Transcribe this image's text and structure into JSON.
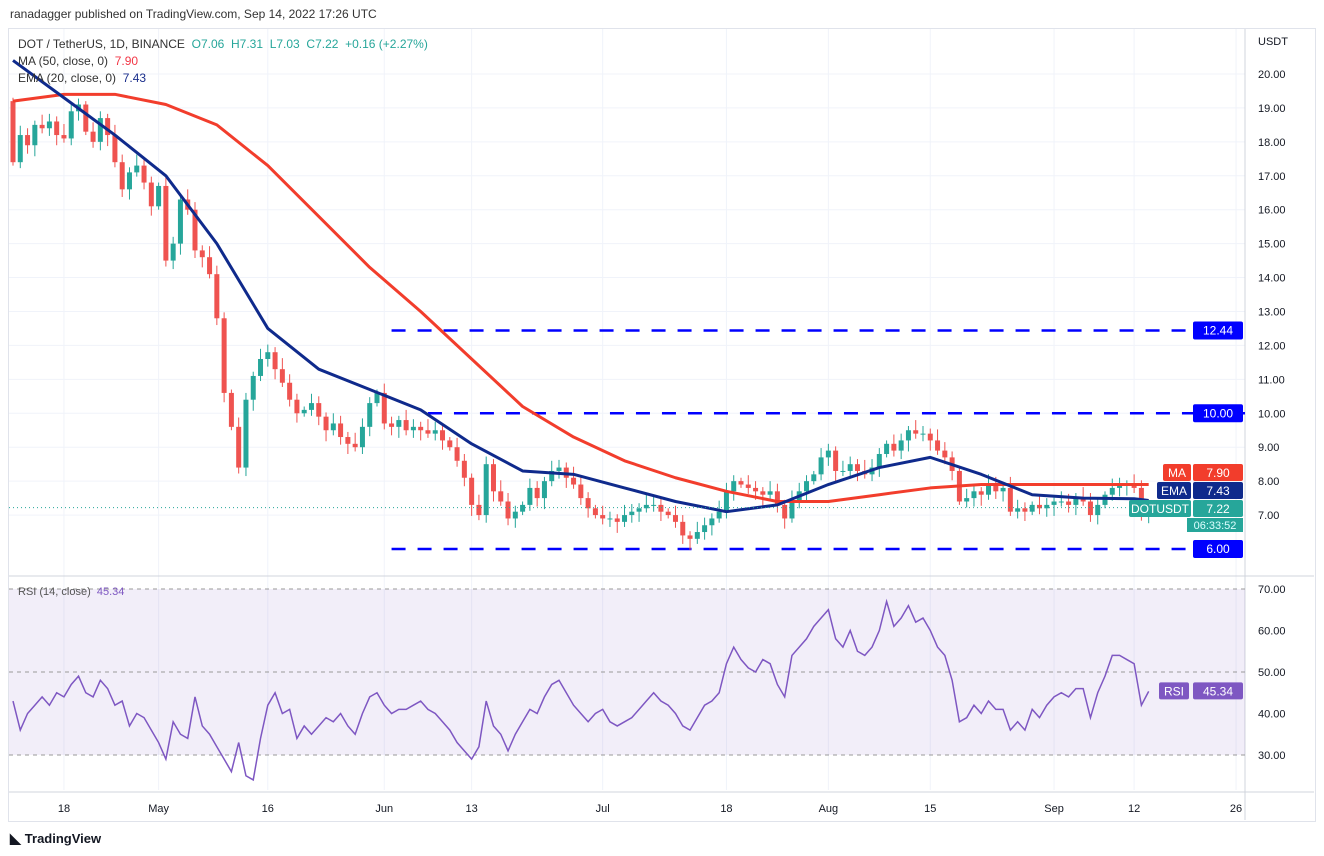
{
  "publisher": "ranadagger published on TradingView.com, Sep 14, 2022 17:26 UTC",
  "legend": {
    "symbol": "DOT / TetherUS, 1D, BINANCE",
    "o": "O7.06",
    "h": "H7.31",
    "l": "L7.03",
    "c": "C7.22",
    "change": "+0.16 (+2.27%)",
    "ma": "MA (50, close, 0)",
    "ma_val": "7.90",
    "ema": "EMA (20, close, 0)",
    "ema_val": "7.43",
    "rsi": "RSI (14, close)",
    "rsi_val": "45.34"
  },
  "footer": "TradingView",
  "colors": {
    "up": "#26a69a",
    "down": "#ef5350",
    "ma": "#f23d2c",
    "ema": "#0f2a8c",
    "level": "#0000ff",
    "rsi": "#7e57c2"
  },
  "chart_data": [
    {
      "type": "candlestick",
      "title": "DOT / TetherUS, 1D, BINANCE",
      "ylabel": "USDT",
      "ylim": [
        6,
        20
      ],
      "yticks": [
        7,
        8,
        9,
        10,
        11,
        12,
        13,
        14,
        15,
        16,
        17,
        18,
        19,
        20
      ],
      "start_date": "2022-04-11",
      "first_open": 19.2,
      "closes": [
        17.4,
        18.2,
        17.9,
        18.5,
        18.4,
        18.6,
        18.2,
        18.1,
        18.9,
        19.1,
        18.3,
        18.0,
        18.7,
        18.2,
        17.4,
        16.6,
        17.1,
        17.3,
        16.8,
        16.1,
        16.7,
        14.5,
        15.0,
        16.3,
        16.0,
        14.8,
        14.6,
        14.1,
        12.8,
        10.6,
        9.6,
        8.4,
        10.4,
        11.1,
        11.6,
        11.8,
        11.3,
        10.9,
        10.4,
        10.0,
        10.1,
        10.3,
        9.9,
        9.5,
        9.7,
        9.3,
        9.1,
        9.0,
        9.6,
        10.3,
        10.6,
        9.7,
        9.6,
        9.8,
        9.5,
        9.6,
        9.5,
        9.4,
        9.5,
        9.2,
        9.0,
        8.6,
        8.1,
        7.3,
        7.0,
        8.5,
        7.7,
        7.4,
        6.9,
        7.1,
        7.3,
        7.8,
        7.5,
        8.0,
        8.3,
        8.4,
        8.1,
        7.9,
        7.5,
        7.2,
        7.0,
        6.9,
        6.9,
        6.8,
        7.0,
        7.1,
        7.2,
        7.3,
        7.3,
        7.1,
        7.0,
        6.8,
        6.4,
        6.3,
        6.5,
        6.7,
        6.9,
        7.1,
        7.7,
        8.0,
        7.9,
        7.8,
        7.7,
        7.6,
        7.7,
        7.3,
        6.9,
        7.4,
        7.7,
        8.0,
        8.2,
        8.7,
        8.9,
        8.3,
        8.3,
        8.5,
        8.3,
        8.2,
        8.4,
        8.8,
        9.1,
        8.9,
        9.2,
        9.5,
        9.4,
        9.4,
        9.2,
        8.9,
        8.7,
        8.3,
        7.4,
        7.5,
        7.7,
        7.6,
        7.9,
        7.7,
        7.8,
        7.1,
        7.2,
        7.1,
        7.3,
        7.2,
        7.3,
        7.4,
        7.4,
        7.3,
        7.5,
        7.4,
        7.0,
        7.3,
        7.6,
        7.8,
        7.9,
        7.9,
        7.8,
        7.06,
        7.22
      ],
      "ema20_weekly": [
        20.4,
        19.3,
        18.2,
        17.0,
        15.0,
        12.5,
        11.3,
        10.7,
        10.1,
        9.1,
        8.3,
        8.2,
        7.8,
        7.4,
        7.1,
        7.3,
        7.9,
        8.4,
        8.7,
        8.2,
        7.6,
        7.5,
        7.48,
        7.43
      ],
      "ma50_weekly": [
        19.2,
        19.4,
        19.4,
        19.1,
        18.5,
        17.3,
        15.8,
        14.3,
        13.0,
        11.6,
        10.2,
        9.3,
        8.6,
        8.1,
        7.7,
        7.4,
        7.4,
        7.6,
        7.8,
        7.9,
        7.9,
        7.9,
        7.9,
        7.9
      ],
      "levels": [
        {
          "value": 12.44,
          "label": "12.44",
          "from_day": 52
        },
        {
          "value": 10.0,
          "label": "10.00",
          "from_day": 57
        },
        {
          "value": 6.0,
          "label": "6.00",
          "from_day": 52
        }
      ],
      "badges": {
        "ma": {
          "name": "MA",
          "value": "7.90"
        },
        "ema": {
          "name": "EMA",
          "value": "7.43"
        },
        "last": {
          "name": "DOTUSDT",
          "value": "7.22",
          "countdown": "06:33:52"
        }
      },
      "xticks": [
        {
          "label": "18",
          "day": 7
        },
        {
          "label": "May",
          "day": 20
        },
        {
          "label": "16",
          "day": 35
        },
        {
          "label": "Jun",
          "day": 51
        },
        {
          "label": "13",
          "day": 63
        },
        {
          "label": "Jul",
          "day": 81
        },
        {
          "label": "18",
          "day": 98
        },
        {
          "label": "Aug",
          "day": 112
        },
        {
          "label": "15",
          "day": 126
        },
        {
          "label": "Sep",
          "day": 143
        },
        {
          "label": "12",
          "day": 154
        },
        {
          "label": "26",
          "day": 168
        }
      ]
    },
    {
      "type": "line",
      "title": "RSI (14, close)",
      "ylim": [
        20,
        75
      ],
      "yticks": [
        30,
        40,
        50,
        60,
        70
      ],
      "band": [
        30,
        70
      ],
      "badge": {
        "name": "RSI",
        "value": "45.34"
      },
      "values": [
        43,
        36,
        40,
        42,
        44,
        42,
        45,
        44,
        47,
        49,
        45,
        44,
        48,
        46,
        42,
        43,
        37,
        40,
        39,
        36,
        33,
        29,
        38,
        35,
        34,
        44,
        37,
        35,
        32,
        29,
        26,
        33,
        25,
        24,
        34,
        42,
        45,
        40,
        41,
        34,
        37,
        35,
        37,
        39,
        38,
        40,
        37,
        35,
        40,
        44,
        45,
        42,
        40,
        41,
        41,
        42,
        43,
        41,
        40,
        38,
        36,
        33,
        31,
        29,
        32,
        43,
        37,
        35,
        31,
        35,
        38,
        41,
        40,
        44,
        47,
        48,
        45,
        42,
        40,
        38,
        40,
        41,
        38,
        37,
        38,
        39,
        41,
        43,
        45,
        43,
        42,
        40,
        37,
        36,
        39,
        42,
        43,
        45,
        52,
        56,
        53,
        51,
        50,
        53,
        52,
        47,
        44,
        54,
        56,
        58,
        61,
        63,
        65,
        58,
        56,
        60,
        55,
        54,
        56,
        60,
        67,
        61,
        63,
        66,
        62,
        63,
        60,
        56,
        54,
        48,
        38,
        39,
        42,
        40,
        43,
        41,
        41,
        36,
        38,
        36,
        41,
        39,
        42,
        44,
        45,
        44,
        46,
        46,
        39,
        45,
        49,
        54,
        54,
        53,
        52,
        42,
        45.34
      ]
    }
  ]
}
